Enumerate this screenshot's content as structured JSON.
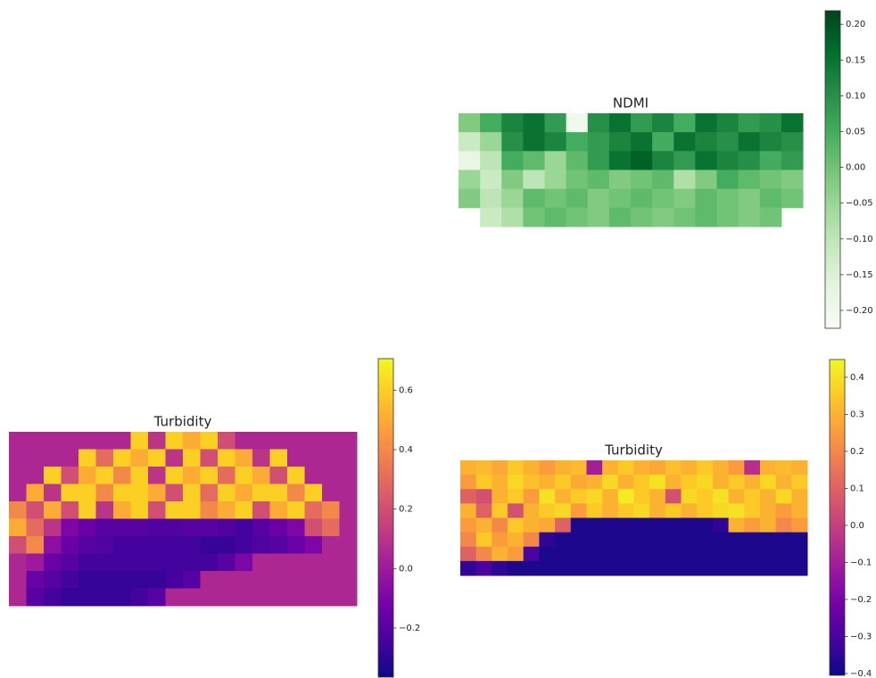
{
  "chart_data": [
    {
      "type": "heatmap",
      "title": "NDMI",
      "colormap": "Greens",
      "zlim": [
        -0.225,
        0.219
      ],
      "zticks": [
        {
          "value": 0.2,
          "label": "0.20"
        },
        {
          "value": 0.15,
          "label": "0.15"
        },
        {
          "value": 0.1,
          "label": "0.10"
        },
        {
          "value": 0.05,
          "label": "0.05"
        },
        {
          "value": 0,
          "label": "0.00"
        },
        {
          "value": -0.05,
          "label": "−0.05"
        },
        {
          "value": -0.1,
          "label": "−0.10"
        },
        {
          "value": -0.15,
          "label": "−0.15"
        },
        {
          "value": -0.2,
          "label": "−0.20"
        }
      ],
      "values": [
        [
          -0.02,
          0.05,
          0.12,
          0.15,
          0.08,
          -0.2,
          0.1,
          0.15,
          0.08,
          0.12,
          0.05,
          0.15,
          0.12,
          0.08,
          0.1,
          0.15
        ],
        [
          -0.12,
          -0.05,
          0.1,
          0.15,
          0.12,
          0.05,
          0.08,
          0.12,
          0.15,
          0.05,
          0.15,
          0.12,
          0.1,
          0.15,
          0.12,
          0.1
        ],
        [
          -0.18,
          -0.1,
          0.05,
          0.02,
          -0.05,
          0.02,
          0.08,
          0.15,
          0.18,
          0.12,
          0.08,
          0.15,
          0.12,
          0.1,
          0.05,
          0.08
        ],
        [
          -0.05,
          -0.12,
          -0.02,
          -0.1,
          -0.05,
          0,
          0.02,
          -0.02,
          0,
          0.02,
          -0.08,
          -0.02,
          0.05,
          0.02,
          0,
          -0.02
        ],
        [
          -0.02,
          -0.1,
          -0.05,
          0.02,
          0,
          0.02,
          -0.02,
          0,
          0.02,
          0,
          -0.02,
          0.02,
          0,
          -0.02,
          0.02,
          0
        ],
        [
          null,
          -0.12,
          -0.08,
          0,
          0.02,
          0,
          -0.02,
          0.02,
          0,
          -0.02,
          0,
          0.02,
          0,
          -0.02,
          0,
          null
        ]
      ]
    },
    {
      "type": "heatmap",
      "title": "Turbidity",
      "colormap": "plasma",
      "zlim": [
        -0.365,
        0.706
      ],
      "zticks": [
        {
          "value": 0.6,
          "label": "0.6"
        },
        {
          "value": 0.4,
          "label": "0.4"
        },
        {
          "value": 0.2,
          "label": "0.2"
        },
        {
          "value": 0,
          "label": "0.0"
        },
        {
          "value": -0.2,
          "label": "−0.2"
        }
      ],
      "values": [
        [
          0.05,
          0.05,
          0.05,
          0.05,
          0.05,
          0.05,
          0.05,
          0.6,
          0.1,
          0.6,
          0.5,
          0.6,
          0.2,
          0.05,
          0.05,
          0.05,
          0.05,
          0.05,
          0.05,
          0.05
        ],
        [
          0.05,
          0.05,
          0.05,
          0.05,
          0.6,
          0.3,
          0.6,
          0.5,
          0.6,
          0.1,
          0.6,
          0.2,
          0.6,
          0.5,
          0.1,
          0.6,
          0.05,
          0.05,
          0.05,
          0.05
        ],
        [
          0.05,
          0.05,
          0.6,
          0.2,
          0.5,
          0.6,
          0.4,
          0.6,
          0.1,
          0.6,
          0.5,
          0.6,
          0.3,
          0.6,
          0.5,
          0.2,
          0.6,
          0.05,
          0.05,
          0.05
        ],
        [
          0.05,
          0.5,
          0.1,
          0.6,
          0.6,
          0.4,
          0.6,
          0.6,
          0.5,
          0.2,
          0.6,
          0.3,
          0.6,
          0.5,
          0.6,
          0.6,
          0.4,
          0.6,
          0.05,
          0.05
        ],
        [
          0.4,
          0.2,
          0.5,
          0.2,
          0.6,
          0.1,
          0.5,
          0.6,
          0.2,
          0.6,
          0.6,
          0.4,
          0.5,
          0.6,
          0.2,
          0.5,
          0.6,
          0.3,
          0.4,
          0.05
        ],
        [
          0.5,
          0.3,
          0.1,
          -0.1,
          -0.15,
          -0.2,
          -0.2,
          -0.2,
          -0.22,
          -0.22,
          -0.2,
          -0.2,
          -0.22,
          -0.25,
          -0.2,
          -0.15,
          -0.1,
          0.2,
          0.3,
          0.05
        ],
        [
          0.2,
          0.4,
          -0.05,
          -0.15,
          -0.2,
          -0.22,
          -0.25,
          -0.25,
          -0.25,
          -0.25,
          -0.25,
          -0.28,
          -0.28,
          -0.25,
          -0.22,
          -0.2,
          -0.15,
          -0.1,
          0.05,
          0.05
        ],
        [
          0.05,
          0,
          -0.15,
          -0.2,
          -0.25,
          -0.25,
          -0.25,
          -0.25,
          -0.25,
          -0.25,
          -0.25,
          -0.25,
          -0.2,
          -0.1,
          0.05,
          0.05,
          0.05,
          0.05,
          0.05,
          0.05
        ],
        [
          0.05,
          -0.15,
          -0.2,
          -0.25,
          -0.28,
          -0.28,
          -0.28,
          -0.28,
          -0.28,
          -0.25,
          -0.2,
          0.05,
          0.05,
          0.05,
          0.05,
          0.05,
          0.05,
          0.05,
          0.05,
          0.05
        ],
        [
          0.05,
          -0.2,
          -0.25,
          -0.28,
          -0.28,
          -0.28,
          -0.28,
          -0.25,
          -0.2,
          0.05,
          0.05,
          0.05,
          0.05,
          0.05,
          0.05,
          0.05,
          0.05,
          0.05,
          0.05,
          0.05
        ]
      ]
    },
    {
      "type": "heatmap",
      "title": "Turbidity",
      "colormap": "plasma",
      "zlim": [
        -0.405,
        0.448
      ],
      "zticks": [
        {
          "value": 0.4,
          "label": "0.4"
        },
        {
          "value": 0.3,
          "label": "0.3"
        },
        {
          "value": 0.2,
          "label": "0.2"
        },
        {
          "value": 0.1,
          "label": "0.1"
        },
        {
          "value": 0,
          "label": "0.0"
        },
        {
          "value": -0.1,
          "label": "−0.1"
        },
        {
          "value": -0.2,
          "label": "−0.2"
        },
        {
          "value": -0.3,
          "label": "−0.3"
        },
        {
          "value": -0.4,
          "label": "−0.4"
        }
      ],
      "values": [
        [
          0.3,
          0.32,
          0.28,
          0.35,
          0.3,
          0.25,
          0.3,
          0.32,
          -0.1,
          0.3,
          0.35,
          0.3,
          0.28,
          0.33,
          0.3,
          0.35,
          0.3,
          0.25,
          -0.05,
          0.3,
          0.32,
          0.3
        ],
        [
          0.25,
          0.35,
          0.3,
          0.38,
          0.33,
          0.3,
          0.35,
          0.28,
          0.3,
          0.38,
          0.3,
          0.35,
          0.4,
          0.3,
          0.35,
          0.38,
          0.3,
          0.35,
          0.3,
          0.38,
          0.3,
          0.35
        ],
        [
          0.1,
          0.05,
          0.3,
          0.35,
          0.25,
          0.4,
          0.3,
          0.35,
          0.38,
          0.3,
          0.42,
          0.35,
          0.3,
          0.05,
          0.38,
          0.35,
          0.4,
          0.3,
          0.35,
          0.3,
          0.38,
          0.3
        ],
        [
          0.3,
          0.1,
          0.35,
          0.05,
          0.3,
          0.35,
          0.38,
          0.25,
          0.35,
          0.3,
          0.35,
          0.38,
          0.3,
          0.35,
          0.3,
          0.35,
          0.38,
          0.4,
          0.35,
          0.3,
          0.25,
          0.3
        ],
        [
          0.25,
          0.3,
          0.2,
          0.35,
          0.3,
          0.28,
          0.1,
          -0.38,
          -0.38,
          -0.38,
          -0.38,
          -0.38,
          -0.38,
          -0.38,
          -0.38,
          -0.38,
          -0.35,
          0.3,
          0.25,
          0.3,
          0.2,
          0.25
        ],
        [
          0.2,
          0.35,
          0.25,
          0.3,
          0.2,
          -0.35,
          -0.38,
          -0.38,
          -0.38,
          -0.38,
          -0.38,
          -0.38,
          -0.38,
          -0.38,
          -0.38,
          -0.38,
          -0.38,
          -0.38,
          -0.38,
          -0.38,
          -0.38,
          -0.38
        ],
        [
          0.1,
          0.2,
          0.3,
          0.25,
          -0.3,
          -0.38,
          -0.38,
          -0.38,
          -0.38,
          -0.38,
          -0.38,
          -0.38,
          -0.38,
          -0.38,
          -0.38,
          -0.38,
          -0.38,
          -0.38,
          -0.38,
          -0.38,
          -0.38,
          -0.38
        ],
        [
          -0.35,
          -0.3,
          -0.35,
          -0.38,
          -0.38,
          -0.38,
          -0.38,
          -0.38,
          -0.38,
          -0.38,
          -0.38,
          -0.38,
          -0.38,
          -0.38,
          -0.38,
          -0.38,
          -0.38,
          -0.38,
          -0.38,
          -0.38,
          -0.38,
          -0.38
        ]
      ]
    }
  ]
}
